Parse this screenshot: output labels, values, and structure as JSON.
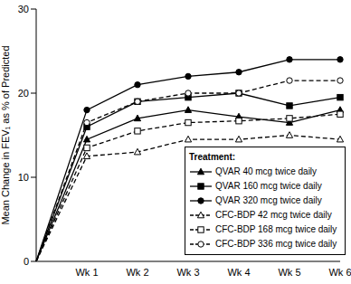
{
  "chart_data": {
    "type": "line",
    "y_label": "Mean Change in FEV₁ as % of Predicted",
    "categories": [
      null,
      "Wk 1",
      "Wk 2",
      "Wk 3",
      "Wk 4",
      "Wk 5",
      "Wk 6"
    ],
    "ylim": [
      0,
      30
    ],
    "yticks": [
      0,
      10,
      20,
      30
    ],
    "legend": "lower right",
    "legend_title": "Treatment:",
    "series": [
      {
        "name": "QVAR 40 mcg twice daily",
        "color": "#000000",
        "marker": "triangle",
        "line_style": "solid",
        "values": [
          0,
          14.5,
          17,
          18,
          17.2,
          16.5,
          18
        ]
      },
      {
        "name": "QVAR 160 mcg twice daily",
        "color": "#000000",
        "marker": "square",
        "line_style": "solid",
        "values": [
          0,
          16,
          19,
          19.5,
          20,
          18.5,
          19.5
        ]
      },
      {
        "name": "QVAR 320 mcg twice daily",
        "color": "#000000",
        "marker": "circle",
        "line_style": "solid",
        "values": [
          0,
          18,
          21,
          22,
          22.5,
          24,
          24
        ]
      },
      {
        "name": "CFC-BDP 42 mcg twice daily",
        "color": "#000000",
        "marker": "triangle-open",
        "line_style": "dashed",
        "values": [
          0,
          12.5,
          13,
          14.5,
          14.5,
          15,
          14.5
        ]
      },
      {
        "name": "CFC-BDP 168 mcg twice daily",
        "color": "#000000",
        "marker": "square-open",
        "line_style": "dashed",
        "values": [
          0,
          13.5,
          15.5,
          16.5,
          16.7,
          17,
          17.5
        ]
      },
      {
        "name": "CFC-BDP 336 mcg twice daily",
        "color": "#000000",
        "marker": "circle-open",
        "line_style": "dashed",
        "values": [
          0,
          16.5,
          19,
          20,
          20,
          21.5,
          21.5
        ]
      }
    ]
  }
}
